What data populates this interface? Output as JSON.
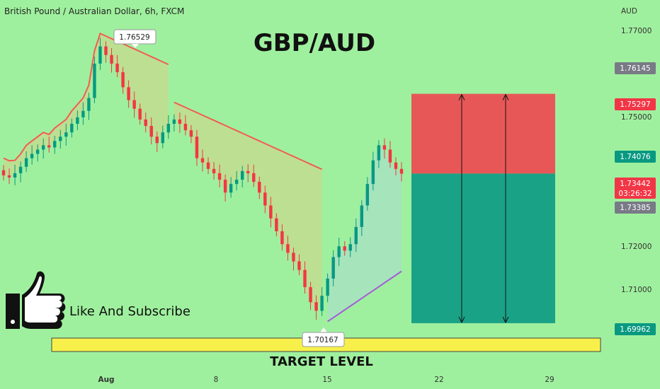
{
  "header": {
    "symbol_title": "British Pound / Australian Dollar, 6h, FXCM",
    "headline": "GBP/AUD"
  },
  "annotations": {
    "high_label": "1.76529",
    "low_label": "1.70167",
    "target_text": "TARGET LEVEL",
    "subscribe_text": "Like And Subscribe"
  },
  "price_axis": {
    "currency": "AUD",
    "ticks": [
      "1.77000",
      "1.75000",
      "1.72000",
      "1.71000"
    ],
    "tags": [
      {
        "value": "1.76145",
        "bg": "#787b86",
        "fg": "#ffffff"
      },
      {
        "value": "1.75297",
        "bg": "#f23645",
        "fg": "#ffffff"
      },
      {
        "value": "1.74076",
        "bg": "#089981",
        "fg": "#ffffff"
      },
      {
        "value": "1.73442",
        "bg": "#f23645",
        "fg": "#ffffff"
      },
      {
        "value": "03:26:32",
        "bg": "#f23645",
        "fg": "#ffffff"
      },
      {
        "value": "1.73385",
        "bg": "#787b86",
        "fg": "#ffffff"
      },
      {
        "value": "1.69962",
        "bg": "#089981",
        "fg": "#ffffff"
      }
    ]
  },
  "time_axis": {
    "labels": [
      "Aug",
      "8",
      "15",
      "22",
      "29"
    ]
  },
  "colors": {
    "background": "#9ff09e",
    "up_candle": "#089981",
    "down_candle": "#f23645",
    "stop_zone": "#e85757",
    "target_zone": "#1aa287",
    "target_bar": "#f7f04a",
    "trail_red": "#f25c54",
    "trail_purple": "#a55cd6"
  },
  "chart_data": {
    "type": "candlestick",
    "symbol": "GBP/AUD",
    "timeframe": "6h",
    "y_range": [
      1.6955,
      1.7715
    ],
    "extremes": {
      "high": 1.76529,
      "low": 1.70167
    },
    "trade_setup": {
      "entry": 1.73442,
      "stop_loss": 1.75297,
      "target": 1.69962
    },
    "price_path": [
      1.734,
      1.7335,
      1.7345,
      1.736,
      1.738,
      1.739,
      1.74,
      1.741,
      1.7405,
      1.742,
      1.743,
      1.744,
      1.746,
      1.7475,
      1.749,
      1.752,
      1.76,
      1.764,
      1.762,
      1.76,
      1.758,
      1.7545,
      1.7515,
      1.7495,
      1.747,
      1.7455,
      1.743,
      1.7415,
      1.744,
      1.746,
      1.747,
      1.746,
      1.7445,
      1.743,
      1.738,
      1.737,
      1.7355,
      1.7345,
      1.733,
      1.73,
      1.732,
      1.733,
      1.735,
      1.7345,
      1.7325,
      1.73,
      1.727,
      1.724,
      1.721,
      1.718,
      1.716,
      1.714,
      1.712,
      1.708,
      1.7045,
      1.7025,
      1.706,
      1.71,
      1.715,
      1.7175,
      1.7165,
      1.718,
      1.722,
      1.727,
      1.732,
      1.7375,
      1.741,
      1.74,
      1.737,
      1.7355,
      1.7344
    ]
  }
}
